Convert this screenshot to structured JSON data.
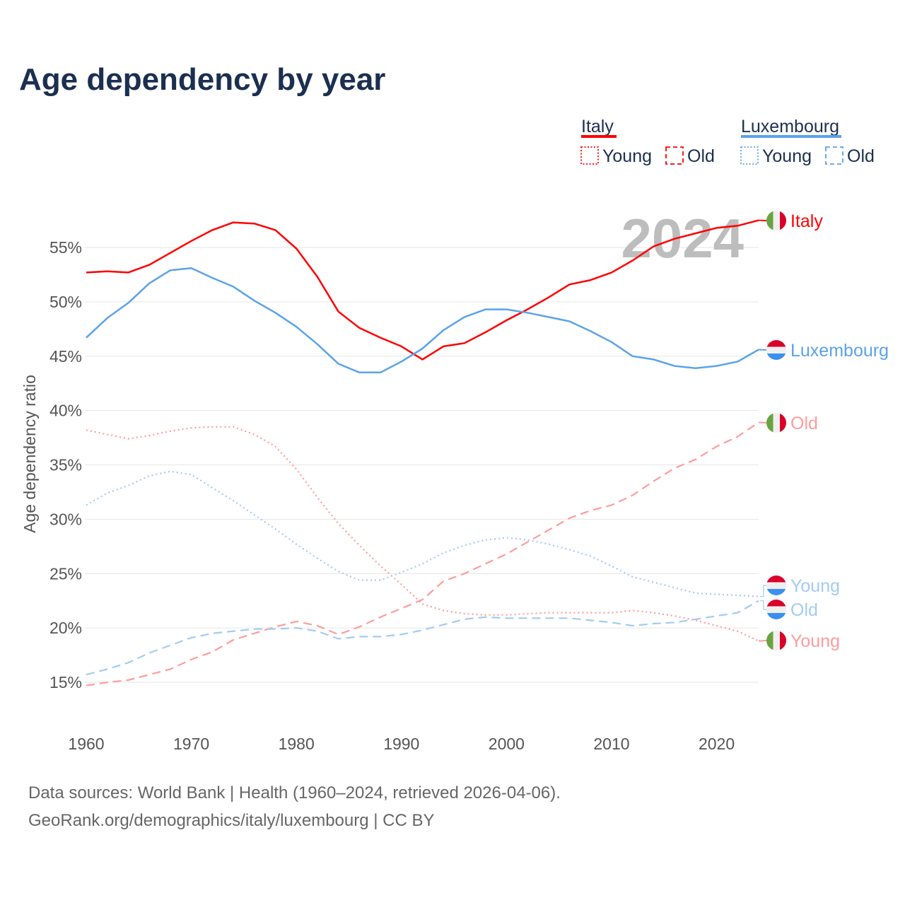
{
  "title": "Age dependency by year",
  "legend": {
    "groups": [
      {
        "name": "Italy",
        "color": "#ff0000",
        "items": [
          "Young",
          "Old"
        ]
      },
      {
        "name": "Luxembourg",
        "color": "#5ba3ea",
        "items": [
          "Young",
          "Old"
        ]
      }
    ]
  },
  "year_watermark": "2024",
  "footer": {
    "line1": "Data sources: World Bank | Health (1960–2024, retrieved 2026-04-06).",
    "line2": "GeoRank.org/demographics/italy/luxembourg | CC BY"
  },
  "chart_data": {
    "type": "line",
    "title": "Age dependency by year",
    "xlabel": "",
    "ylabel": "Age dependency ratio",
    "xlim": [
      1960,
      2024
    ],
    "ylim": [
      15,
      55
    ],
    "xticks": [
      "1960",
      "1970",
      "1980",
      "1990",
      "2000",
      "2010",
      "2020"
    ],
    "yticks": [
      "15%",
      "20%",
      "25%",
      "30%",
      "35%",
      "40%",
      "45%",
      "50%",
      "55%"
    ],
    "grid": true,
    "x": [
      1960,
      1962,
      1964,
      1966,
      1968,
      1970,
      1972,
      1974,
      1976,
      1978,
      1980,
      1982,
      1984,
      1986,
      1988,
      1990,
      1992,
      1994,
      1996,
      1998,
      2000,
      2002,
      2004,
      2006,
      2008,
      2010,
      2012,
      2014,
      2016,
      2018,
      2020,
      2022,
      2024
    ],
    "series": [
      {
        "name": "Italy",
        "end_label": "Italy",
        "flag": "italy",
        "color": "#ff0000",
        "style": "solid",
        "label_color": "#ff0000",
        "values": [
          52.7,
          52.8,
          52.7,
          53.4,
          54.5,
          55.6,
          56.6,
          57.3,
          57.2,
          56.6,
          54.9,
          52.3,
          49.1,
          47.6,
          46.7,
          45.9,
          44.7,
          45.9,
          46.2,
          47.2,
          48.3,
          49.3,
          50.4,
          51.6,
          52.0,
          52.7,
          53.8,
          55.1,
          55.8,
          56.3,
          56.8,
          57.0,
          57.5
        ]
      },
      {
        "name": "Luxembourg",
        "end_label": "Luxembourg",
        "flag": "luxembourg",
        "color": "#5ba3ea",
        "style": "solid",
        "label_color": "#5ba3ea",
        "values": [
          46.7,
          48.5,
          49.9,
          51.7,
          52.9,
          53.1,
          52.2,
          51.4,
          50.1,
          49.0,
          47.7,
          46.1,
          44.3,
          43.5,
          43.5,
          44.5,
          45.7,
          47.4,
          48.6,
          49.3,
          49.3,
          49.0,
          48.6,
          48.2,
          47.3,
          46.3,
          45.0,
          44.7,
          44.1,
          43.9,
          44.1,
          44.5,
          45.6
        ]
      },
      {
        "name": "Italy Old",
        "end_label": "Old",
        "flag": "italy",
        "color": "#ff9c9c",
        "style": "dashed",
        "label_color": "#ff9c9c",
        "values": [
          14.7,
          15.0,
          15.2,
          15.7,
          16.2,
          17.1,
          17.8,
          18.9,
          19.5,
          20.1,
          20.6,
          20.2,
          19.4,
          20.1,
          21.0,
          21.8,
          22.6,
          24.3,
          25.0,
          25.9,
          26.8,
          27.9,
          29.0,
          30.1,
          30.8,
          31.3,
          32.2,
          33.5,
          34.7,
          35.5,
          36.7,
          37.6,
          38.9
        ]
      },
      {
        "name": "Italy Young",
        "end_label": "Young",
        "flag": "italy",
        "color": "#ff9c9c",
        "style": "dotted",
        "label_color": "#ff9c9c",
        "values": [
          38.2,
          37.8,
          37.4,
          37.7,
          38.1,
          38.4,
          38.5,
          38.5,
          37.8,
          36.7,
          34.6,
          32.0,
          29.6,
          27.6,
          25.7,
          24.0,
          22.2,
          21.6,
          21.3,
          21.2,
          21.2,
          21.3,
          21.4,
          21.4,
          21.4,
          21.4,
          21.6,
          21.4,
          21.1,
          20.7,
          20.2,
          19.7,
          18.8
        ]
      },
      {
        "name": "Luxembourg Young",
        "end_label": "Young",
        "flag": "luxembourg",
        "color": "#a4cbf2",
        "style": "dotted",
        "label_color": "#a4cbf2",
        "values": [
          31.3,
          32.4,
          33.1,
          34.0,
          34.4,
          34.1,
          32.9,
          31.7,
          30.4,
          29.1,
          27.7,
          26.4,
          25.2,
          24.4,
          24.4,
          25.1,
          25.9,
          26.9,
          27.6,
          28.1,
          28.3,
          28.1,
          27.7,
          27.2,
          26.6,
          25.7,
          24.7,
          24.2,
          23.7,
          23.2,
          23.1,
          23.0,
          22.9
        ]
      },
      {
        "name": "Luxembourg Old",
        "end_label": "Old",
        "flag": "luxembourg",
        "color": "#a4cbf2",
        "style": "dashed",
        "label_color": "#a4cbf2",
        "values": [
          15.7,
          16.2,
          16.8,
          17.7,
          18.4,
          19.1,
          19.5,
          19.7,
          19.9,
          19.9,
          20.0,
          19.7,
          19.0,
          19.2,
          19.2,
          19.4,
          19.8,
          20.3,
          20.8,
          21.0,
          20.9,
          20.9,
          20.9,
          20.9,
          20.7,
          20.5,
          20.2,
          20.4,
          20.5,
          20.8,
          21.1,
          21.4,
          22.5
        ]
      }
    ]
  }
}
